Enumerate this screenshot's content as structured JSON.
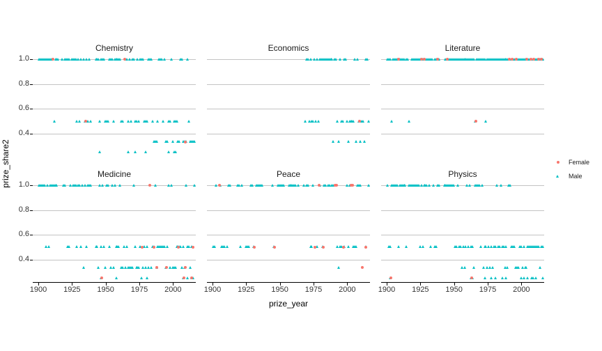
{
  "figure": {
    "x_label": "prize_year",
    "y_label": "prize_share2",
    "x_ticks": [
      1900,
      1925,
      1950,
      1975,
      2000
    ],
    "y_tick_labels": [
      "1.0",
      "0.8",
      "0.6",
      "0.4"
    ],
    "legend": {
      "items": [
        {
          "label": "Female",
          "shape": "circle",
          "color": "#F8766D"
        },
        {
          "label": "Male",
          "shape": "triangle",
          "color": "#00BFC4"
        }
      ]
    },
    "colors": {
      "female": "#F8766D",
      "male": "#00BFC4",
      "gridline": "#c3c3c3",
      "axis": "#000000"
    }
  },
  "chart_data": {
    "type": "scatter",
    "title": "",
    "xlabel": "prize_year",
    "ylabel": "prize_share2",
    "facet_titles": [
      "Chemistry",
      "Economics",
      "Literature",
      "Medicine",
      "Peace",
      "Physics"
    ],
    "x_range": [
      1896,
      2017
    ],
    "y_gridlines": [
      1.0,
      0.8,
      0.6,
      0.4
    ],
    "legend_entries": [
      "Female",
      "Male"
    ],
    "facets": [
      {
        "title": "Chemistry",
        "groups": [
          {
            "gender": "Male",
            "share": 1.0,
            "years": [
              1901,
              1902,
              1903,
              1904,
              1905,
              1906,
              1907,
              1908,
              1909,
              1910,
              1913,
              1914,
              1915,
              1918,
              1920,
              1921,
              1922,
              1923,
              1925,
              1926,
              1927,
              1928,
              1930,
              1932,
              1934,
              1936,
              1938,
              1943,
              1944,
              1945,
              1947,
              1948,
              1949,
              1953,
              1954,
              1955,
              1957,
              1958,
              1959,
              1960,
              1961,
              1965,
              1966,
              1968,
              1970,
              1971,
              1974,
              1976,
              1977,
              1978,
              1982,
              1983,
              1984,
              1990,
              1991,
              1992,
              1994,
              1999,
              2006,
              2007,
              2011
            ]
          },
          {
            "gender": "Male",
            "share": 0.5,
            "years": [
              1912,
              1929,
              1931,
              1935,
              1937,
              1939,
              1946,
              1950,
              1951,
              1952,
              1956,
              1962,
              1963,
              1967,
              1969,
              1972,
              1973,
              1975,
              1979,
              1980,
              1981,
              1985,
              1989,
              1993,
              1997,
              1998,
              2001,
              2002,
              2003,
              2012
            ]
          },
          {
            "gender": "Male",
            "share": 0.333,
            "years": [
              1986,
              1987,
              1988,
              1995,
              1996,
              2000,
              2004,
              2005,
              2008,
              2009,
              2010,
              2013,
              2014,
              2015,
              2016
            ]
          },
          {
            "gender": "Male",
            "share": 0.25,
            "years": [
              1946,
              1967,
              1972,
              1980,
              1997,
              2001,
              2002
            ]
          },
          {
            "gender": "Female",
            "share": 1.0,
            "years": [
              1911,
              1964
            ]
          },
          {
            "gender": "Female",
            "share": 0.5,
            "years": [
              1935
            ]
          },
          {
            "gender": "Female",
            "share": 0.333,
            "years": [
              2009
            ]
          }
        ]
      },
      {
        "title": "Economics",
        "groups": [
          {
            "gender": "Male",
            "share": 1.0,
            "years": [
              1970,
              1971,
              1973,
              1976,
              1978,
              1980,
              1981,
              1982,
              1983,
              1984,
              1985,
              1986,
              1987,
              1988,
              1989,
              1991,
              1992,
              1995,
              1998,
              1999,
              2006,
              2008,
              2014,
              2015
            ]
          },
          {
            "gender": "Male",
            "share": 0.5,
            "years": [
              1969,
              1972,
              1974,
              1975,
              1977,
              1979,
              1993,
              1996,
              1997,
              2000,
              2002,
              2003,
              2004,
              2005,
              2009,
              2011,
              2012,
              2016
            ]
          },
          {
            "gender": "Male",
            "share": 0.333,
            "years": [
              1990,
              1994,
              2001,
              2007,
              2010,
              2013
            ]
          },
          {
            "gender": "Female",
            "share": 0.5,
            "years": [
              2009
            ]
          }
        ]
      },
      {
        "title": "Literature",
        "groups": [
          {
            "gender": "Male",
            "share": 1.0,
            "years": [
              1901,
              1902,
              1903,
              1905,
              1906,
              1907,
              1908,
              1910,
              1911,
              1912,
              1913,
              1915,
              1916,
              1919,
              1920,
              1921,
              1922,
              1923,
              1924,
              1925,
              1927,
              1929,
              1930,
              1931,
              1932,
              1933,
              1934,
              1936,
              1937,
              1939,
              1944,
              1946,
              1947,
              1948,
              1949,
              1950,
              1951,
              1952,
              1953,
              1954,
              1955,
              1956,
              1957,
              1958,
              1959,
              1960,
              1961,
              1962,
              1963,
              1964,
              1965,
              1967,
              1968,
              1969,
              1970,
              1971,
              1972,
              1973,
              1975,
              1976,
              1977,
              1978,
              1979,
              1980,
              1981,
              1982,
              1983,
              1984,
              1985,
              1986,
              1987,
              1988,
              1989,
              1990,
              1992,
              1994,
              1995,
              1997,
              1998,
              1999,
              2000,
              2001,
              2002,
              2003,
              2005,
              2006,
              2008,
              2010,
              2011,
              2012,
              2014,
              2016
            ]
          },
          {
            "gender": "Male",
            "share": 0.5,
            "years": [
              1904,
              1917,
              1966,
              1974
            ]
          },
          {
            "gender": "Female",
            "share": 1.0,
            "years": [
              1909,
              1926,
              1928,
              1938,
              1945,
              1991,
              1993,
              1996,
              2004,
              2007,
              2009,
              2013,
              2015
            ]
          },
          {
            "gender": "Female",
            "share": 0.5,
            "years": [
              1966
            ]
          }
        ]
      },
      {
        "title": "Medicine",
        "groups": [
          {
            "gender": "Male",
            "share": 1.0,
            "years": [
              1901,
              1902,
              1903,
              1904,
              1905,
              1907,
              1909,
              1910,
              1911,
              1912,
              1913,
              1914,
              1919,
              1920,
              1924,
              1926,
              1927,
              1928,
              1930,
              1931,
              1933,
              1935,
              1937,
              1938,
              1939,
              1946,
              1948,
              1951,
              1952,
              1955,
              1957,
              1961,
              1971,
              1987,
              1997,
              1999,
              2010,
              2016
            ]
          },
          {
            "gender": "Male",
            "share": 0.5,
            "years": [
              1906,
              1908,
              1922,
              1923,
              1929,
              1932,
              1936,
              1943,
              1944,
              1947,
              1949,
              1953,
              1958,
              1959,
              1960,
              1964,
              1966,
              1972,
              1976,
              1979,
              1981,
              1985,
              1986,
              1989,
              1990,
              1991,
              1992,
              1993,
              1994,
              1996,
              2003,
              2004,
              2005,
              2006,
              2008,
              2011,
              2012,
              2014
            ]
          },
          {
            "gender": "Male",
            "share": 0.333,
            "years": [
              1934,
              1945,
              1950,
              1954,
              1956,
              1962,
              1963,
              1965,
              1967,
              1968,
              1969,
              1970,
              1973,
              1974,
              1975,
              1978,
              1980,
              1982,
              1984,
              1988,
              1995,
              1998,
              2000,
              2001,
              2002,
              2007,
              2009,
              2013
            ]
          },
          {
            "gender": "Male",
            "share": 0.25,
            "years": [
              1947,
              1958,
              1977,
              1981,
              2008,
              2011,
              2014,
              2015
            ]
          },
          {
            "gender": "Female",
            "share": 1.0,
            "years": [
              1983
            ]
          },
          {
            "gender": "Female",
            "share": 0.5,
            "years": [
              1977,
              1986,
              2004,
              2015
            ]
          },
          {
            "gender": "Female",
            "share": 0.333,
            "years": [
              1988,
              1995,
              2009
            ]
          },
          {
            "gender": "Female",
            "share": 0.25,
            "years": [
              1947,
              2008,
              2014
            ]
          }
        ]
      },
      {
        "title": "Peace",
        "groups": [
          {
            "gender": "Male",
            "share": 1.0,
            "years": [
              1903,
              1906,
              1912,
              1913,
              1919,
              1920,
              1922,
              1929,
              1930,
              1933,
              1934,
              1935,
              1936,
              1937,
              1945,
              1949,
              1950,
              1951,
              1952,
              1953,
              1957,
              1958,
              1959,
              1960,
              1961,
              1962,
              1964,
              1968,
              1970,
              1971,
              1975,
              1980,
              1983,
              1984,
              1986,
              1987,
              1989,
              1990,
              2000,
              2002,
              2008,
              2009,
              2010,
              2016
            ]
          },
          {
            "gender": "Male",
            "share": 0.5,
            "years": [
              1901,
              1902,
              1907,
              1908,
              1909,
              1911,
              1921,
              1925,
              1926,
              1927,
              1931,
              1946,
              1973,
              1974,
              1978,
              1982,
              1993,
              1995,
              1996,
              1998,
              2001,
              2005,
              2006,
              2007,
              2014
            ]
          },
          {
            "gender": "Male",
            "share": 0.333,
            "years": [
              1994
            ]
          },
          {
            "gender": "Female",
            "share": 1.0,
            "years": [
              1905,
              1979,
              1991,
              1992,
              2003,
              2004
            ]
          },
          {
            "gender": "Female",
            "share": 0.5,
            "years": [
              1931,
              1946,
              1976,
              1982,
              1997,
              2014
            ]
          },
          {
            "gender": "Female",
            "share": 0.333,
            "years": [
              2011
            ]
          }
        ]
      },
      {
        "title": "Physics",
        "groups": [
          {
            "gender": "Male",
            "share": 1.0,
            "years": [
              1901,
              1904,
              1905,
              1906,
              1907,
              1908,
              1910,
              1911,
              1912,
              1913,
              1914,
              1917,
              1918,
              1919,
              1920,
              1921,
              1922,
              1923,
              1924,
              1926,
              1928,
              1929,
              1930,
              1932,
              1935,
              1938,
              1939,
              1943,
              1944,
              1945,
              1946,
              1947,
              1948,
              1949,
              1950,
              1953,
              1960,
              1962,
              1966,
              1967,
              1968,
              1969,
              1971,
              1982,
              1985,
              1991,
              1992
            ]
          },
          {
            "gender": "Male",
            "share": 0.5,
            "years": [
              1902,
              1903,
              1909,
              1915,
              1925,
              1927,
              1933,
              1936,
              1937,
              1951,
              1952,
              1954,
              1955,
              1957,
              1959,
              1961,
              1963,
              1964,
              1970,
              1973,
              1974,
              1976,
              1978,
              1980,
              1981,
              1983,
              1984,
              1986,
              1987,
              1989,
              1993,
              1994,
              1995,
              1999,
              2000,
              2002,
              2005,
              2006,
              2007,
              2008,
              2009,
              2010,
              2011,
              2012,
              2013,
              2015,
              2016
            ]
          },
          {
            "gender": "Male",
            "share": 0.333,
            "years": [
              1956,
              1958,
              1965,
              1972,
              1975,
              1977,
              1979,
              1988,
              1990,
              1996,
              1997,
              1998,
              2001,
              2003,
              2004,
              2014
            ]
          },
          {
            "gender": "Male",
            "share": 0.25,
            "years": [
              1903,
              1963,
              1964,
              1973,
              1978,
              1981,
              1986,
              1989,
              2000,
              2002,
              2005,
              2008,
              2009,
              2011,
              2016
            ]
          },
          {
            "gender": "Female",
            "share": 0.25,
            "years": [
              1903,
              1963
            ]
          }
        ]
      }
    ]
  }
}
